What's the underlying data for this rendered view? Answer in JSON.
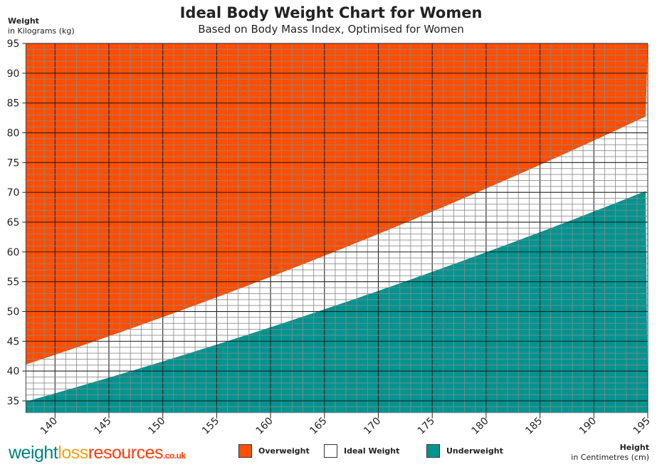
{
  "chart_data": {
    "type": "area",
    "title": "Ideal Body Weight Chart for Women",
    "subtitle": "Based on Body Mass Index, Optimised for Women",
    "ylabel": "Weight",
    "ylabel_unit": "in Kilograms (kg)",
    "xlabel": "Height",
    "xlabel_unit": "in Centimetres (cm)",
    "xlim": [
      137.3,
      195
    ],
    "ylim": [
      33,
      95
    ],
    "x_ticks": [
      140,
      145,
      150,
      155,
      160,
      165,
      170,
      175,
      180,
      185,
      190,
      195
    ],
    "y_ticks": [
      35,
      40,
      45,
      50,
      55,
      60,
      65,
      70,
      75,
      80,
      85,
      90,
      95
    ],
    "grid": true,
    "grid_minor_step": {
      "x": 1,
      "y": 1
    },
    "legend_placement": "bottom",
    "bands": [
      {
        "name": "Overweight",
        "color": "#ff4e00",
        "bmi_lower": 21.8
      },
      {
        "name": "Ideal Weight",
        "color": "#ffffff",
        "bmi_lower": 18.5,
        "bmi_upper": 21.8
      },
      {
        "name": "Underweight",
        "color": "#009490",
        "bmi_upper": 18.5
      }
    ],
    "boundary_points": {
      "upper": [
        {
          "x": 137.3,
          "y": 41.1
        },
        {
          "x": 160,
          "y": 55.8
        },
        {
          "x": 195,
          "y": 82.9
        }
      ],
      "lower": [
        {
          "x": 137.3,
          "y": 34.9
        },
        {
          "x": 160,
          "y": 47.4
        },
        {
          "x": 195,
          "y": 70.3
        }
      ]
    }
  },
  "brand": {
    "part1": "weight",
    "part2": "loss",
    "part3": "resources",
    "part4": ".co.uk"
  }
}
